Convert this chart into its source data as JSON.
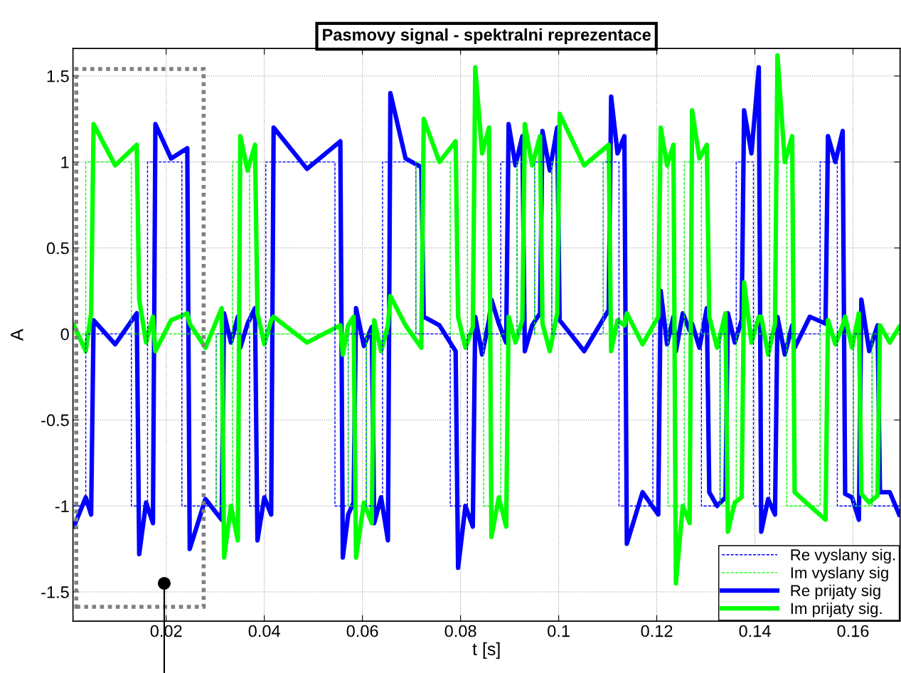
{
  "chart_data": {
    "type": "line",
    "title": "Pasmovy signal - spektralni reprezentace",
    "xlabel": "t [s]",
    "ylabel": "A",
    "xlim": [
      0.001,
      0.1696
    ],
    "ylim": [
      -1.67,
      1.66
    ],
    "xticks": [
      0.02,
      0.04,
      0.06,
      0.08,
      0.1,
      0.12,
      0.14,
      0.16
    ],
    "yticks": [
      -1.5,
      -1,
      -0.5,
      0,
      0.5,
      1,
      1.5
    ],
    "grid": true,
    "legend": "bottom right",
    "marker": "none",
    "series": [
      {
        "name": "Re vyslany sig.",
        "type": "step",
        "line_style": "dashed",
        "color": "#0000ff",
        "x": [
          0.001,
          0.0036,
          0.0129,
          0.0162,
          0.0232,
          0.0302,
          0.0335,
          0.037,
          0.0403,
          0.0544,
          0.0571,
          0.0608,
          0.0641,
          0.0709,
          0.0779,
          0.0814,
          0.0847,
          0.0882,
          0.0915,
          0.0951,
          0.0986,
          0.1091,
          0.1123,
          0.1192,
          0.1223,
          0.1256,
          0.1291,
          0.1329,
          0.1362,
          0.1397,
          0.143,
          0.1465,
          0.1533,
          0.1568,
          0.1601,
          0.1639,
          0.1696
        ],
        "values": [
          -1,
          0,
          -1,
          1,
          -1,
          0,
          0,
          -1,
          1,
          -1,
          0,
          -1,
          1,
          0,
          -1,
          0,
          0,
          1,
          0,
          1,
          0,
          1,
          -1,
          0,
          0,
          0,
          -1,
          0,
          1,
          -1,
          0,
          0,
          1,
          -1,
          0,
          -1,
          -1
        ]
      },
      {
        "name": "Im vyslany sig",
        "type": "step",
        "line_style": "dashed",
        "color": "#00ff00",
        "x": [
          0.001,
          0.0036,
          0.0129,
          0.0162,
          0.0232,
          0.0302,
          0.0335,
          0.037,
          0.0403,
          0.0544,
          0.0571,
          0.0608,
          0.0641,
          0.0709,
          0.0779,
          0.0814,
          0.0847,
          0.0882,
          0.0915,
          0.0951,
          0.0986,
          0.1091,
          0.1123,
          0.1192,
          0.1223,
          0.1256,
          0.1291,
          0.1329,
          0.1362,
          0.1397,
          0.143,
          0.1465,
          0.1533,
          0.1568,
          0.1601,
          0.1639,
          0.1696
        ],
        "values": [
          0,
          1,
          0,
          0,
          0,
          -1,
          1,
          0,
          0,
          0,
          -1,
          0,
          0,
          1,
          0,
          1,
          -1,
          0,
          1,
          0,
          1,
          0,
          0,
          1,
          -1,
          1,
          0,
          -1,
          0,
          0,
          1,
          -1,
          0,
          0,
          -1,
          0,
          0
        ]
      },
      {
        "name": "Re prijaty sig",
        "line_style": "solid",
        "color": "#0000ff",
        "x": [
          0.0012,
          0.0036,
          0.0047,
          0.0052,
          0.0096,
          0.014,
          0.0145,
          0.0159,
          0.0173,
          0.0178,
          0.021,
          0.0243,
          0.0248,
          0.028,
          0.0313,
          0.0318,
          0.0332,
          0.0346,
          0.0351,
          0.0366,
          0.0381,
          0.0386,
          0.04,
          0.0414,
          0.0419,
          0.0487,
          0.0555,
          0.056,
          0.0571,
          0.0582,
          0.0587,
          0.0603,
          0.0619,
          0.0624,
          0.0638,
          0.0652,
          0.0657,
          0.0688,
          0.072,
          0.0725,
          0.0757,
          0.079,
          0.0795,
          0.081,
          0.0825,
          0.083,
          0.0844,
          0.0858,
          0.0863,
          0.0878,
          0.0893,
          0.0898,
          0.0912,
          0.0926,
          0.0931,
          0.0946,
          0.0962,
          0.0967,
          0.0982,
          0.0997,
          0.1002,
          0.1052,
          0.1102,
          0.1107,
          0.112,
          0.1134,
          0.1139,
          0.1171,
          0.1203,
          0.1208,
          0.1221,
          0.1234,
          0.1239,
          0.1253,
          0.1267,
          0.1272,
          0.1287,
          0.1302,
          0.1307,
          0.1323,
          0.134,
          0.1345,
          0.1359,
          0.1373,
          0.1378,
          0.1393,
          0.1408,
          0.1413,
          0.1427,
          0.1441,
          0.1446,
          0.1461,
          0.1476,
          0.1481,
          0.1512,
          0.1544,
          0.1549,
          0.1564,
          0.1579,
          0.1584,
          0.1598,
          0.1612,
          0.1617,
          0.1633,
          0.165,
          0.1655,
          0.1675,
          0.1694
        ],
        "values": [
          -1.12,
          -0.95,
          -1.05,
          0.08,
          -0.06,
          0.12,
          -1.28,
          -0.98,
          -1.1,
          1.22,
          1.02,
          1.08,
          -1.25,
          -0.96,
          -1.08,
          0.12,
          -0.05,
          0.1,
          -0.08,
          0.06,
          0.15,
          -1.2,
          -0.95,
          -1.05,
          1.2,
          0.96,
          1.12,
          -1.3,
          -1.05,
          -0.98,
          0.15,
          -0.07,
          0.04,
          -1.1,
          -0.95,
          -1.2,
          1.4,
          1.02,
          0.97,
          0.1,
          0.05,
          -0.1,
          -1.36,
          -1.0,
          -1.12,
          0.1,
          -0.12,
          0.08,
          0.2,
          0.06,
          -0.05,
          1.22,
          0.98,
          1.15,
          -0.1,
          0.05,
          0.12,
          1.18,
          0.95,
          1.2,
          0.08,
          -0.1,
          0.14,
          1.38,
          1.05,
          1.15,
          -1.22,
          -0.92,
          -1.05,
          0.25,
          -0.06,
          0.1,
          -0.1,
          0.12,
          0.02,
          0.06,
          -0.08,
          0.15,
          -0.92,
          -1.0,
          -0.95,
          0.12,
          -0.05,
          0.08,
          1.3,
          1.05,
          1.55,
          -1.15,
          -0.96,
          -1.05,
          0.1,
          -0.12,
          0.05,
          -0.08,
          0.1,
          0.06,
          1.15,
          1.0,
          1.18,
          -0.93,
          -0.95,
          -1.08,
          0.2,
          -0.1,
          0.05,
          -0.92,
          -0.92,
          -1.05
        ]
      },
      {
        "name": "Im prijaty sig.",
        "line_style": "solid",
        "color": "#00ff00",
        "x": [
          0.0012,
          0.0036,
          0.0047,
          0.0052,
          0.0096,
          0.014,
          0.0145,
          0.0159,
          0.0173,
          0.0178,
          0.021,
          0.0243,
          0.0248,
          0.028,
          0.0313,
          0.0318,
          0.0332,
          0.0346,
          0.0351,
          0.0366,
          0.0381,
          0.0386,
          0.04,
          0.0414,
          0.0419,
          0.0487,
          0.0555,
          0.056,
          0.0571,
          0.0582,
          0.0587,
          0.0603,
          0.0619,
          0.0624,
          0.0638,
          0.0652,
          0.0657,
          0.0688,
          0.072,
          0.0725,
          0.0757,
          0.079,
          0.0795,
          0.081,
          0.0825,
          0.083,
          0.0844,
          0.0858,
          0.0863,
          0.0878,
          0.0893,
          0.0898,
          0.0912,
          0.0926,
          0.0931,
          0.0946,
          0.0962,
          0.0967,
          0.0982,
          0.0997,
          0.1002,
          0.1052,
          0.1102,
          0.1107,
          0.112,
          0.1134,
          0.1139,
          0.1171,
          0.1203,
          0.1208,
          0.1221,
          0.1234,
          0.1239,
          0.1253,
          0.1267,
          0.1272,
          0.1287,
          0.1302,
          0.1307,
          0.1323,
          0.134,
          0.1345,
          0.1359,
          0.1373,
          0.1378,
          0.1393,
          0.1408,
          0.1413,
          0.1427,
          0.1441,
          0.1446,
          0.1461,
          0.1476,
          0.1481,
          0.1512,
          0.1544,
          0.1549,
          0.1564,
          0.1579,
          0.1584,
          0.1598,
          0.1612,
          0.1617,
          0.1633,
          0.165,
          0.1655,
          0.1675,
          0.1694
        ],
        "values": [
          0.05,
          -0.1,
          0.12,
          1.22,
          0.98,
          1.1,
          0.2,
          -0.05,
          0.1,
          -0.1,
          0.08,
          0.12,
          0.06,
          -0.08,
          0.15,
          -1.3,
          -1.0,
          -1.2,
          1.15,
          0.95,
          1.1,
          0.12,
          -0.06,
          0.08,
          0.1,
          -0.05,
          0.05,
          -0.12,
          0.05,
          0.1,
          -1.3,
          -0.98,
          -1.1,
          0.08,
          -0.1,
          0.05,
          0.22,
          0.05,
          -0.08,
          1.25,
          1.0,
          1.12,
          0.1,
          -0.08,
          0.04,
          1.55,
          1.05,
          1.2,
          -1.18,
          -0.95,
          -1.12,
          0.1,
          -0.05,
          0.08,
          1.22,
          0.98,
          1.15,
          0.06,
          -0.1,
          0.12,
          1.28,
          0.98,
          1.1,
          -0.1,
          0.08,
          0.05,
          0.12,
          -0.06,
          0.1,
          1.2,
          0.98,
          1.1,
          -1.45,
          -1.0,
          -1.1,
          1.3,
          1.02,
          1.1,
          0.1,
          -0.08,
          0.12,
          -1.15,
          -0.98,
          -0.95,
          0.3,
          -0.05,
          0.1,
          0.1,
          -0.12,
          0.06,
          1.62,
          1.0,
          1.15,
          -0.92,
          -1.0,
          -1.08,
          0.08,
          -0.06,
          0.05,
          0.1,
          -0.08,
          0.12,
          -0.93,
          -0.98,
          -0.94,
          0.05,
          -0.05,
          0.04
        ]
      }
    ]
  }
}
